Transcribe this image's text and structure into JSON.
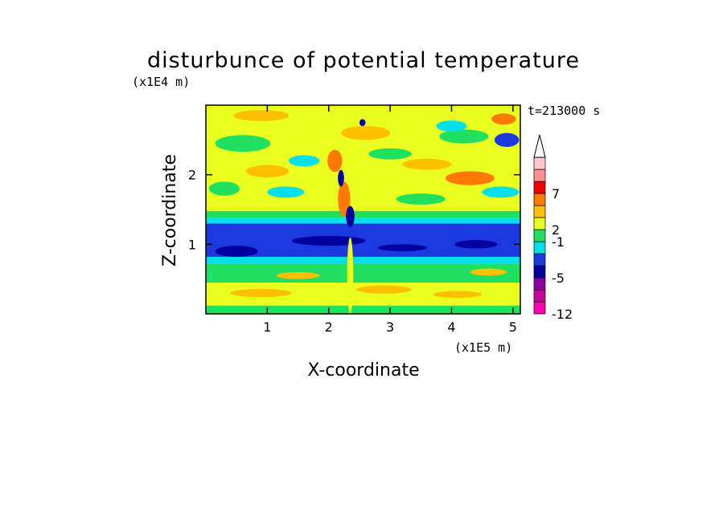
{
  "chart_data": {
    "type": "heatmap",
    "title": "disturbunce of potential temperature",
    "time_label": "t=213000 s",
    "xlabel": "X-coordinate",
    "ylabel": "Z-coordinate",
    "x_unit": "(x1E5 m)",
    "y_unit": "(x1E4 m)",
    "xlim": [
      0,
      5.12
    ],
    "ylim": [
      0,
      3.0
    ],
    "x_ticks": [
      {
        "value": 1,
        "label": "1"
      },
      {
        "value": 2,
        "label": "2"
      },
      {
        "value": 3,
        "label": "3"
      },
      {
        "value": 4,
        "label": "4"
      },
      {
        "value": 5,
        "label": "5"
      }
    ],
    "y_ticks": [
      {
        "value": 1,
        "label": "1"
      },
      {
        "value": 2,
        "label": "2"
      }
    ],
    "colorbar": {
      "levels": [
        {
          "color": "#ff00b0"
        },
        {
          "color": "#c8009a"
        },
        {
          "color": "#8a00a0"
        },
        {
          "color": "#0000a0"
        },
        {
          "color": "#1a3ae0"
        },
        {
          "color": "#00e0e8"
        },
        {
          "color": "#20e060"
        },
        {
          "color": "#e8ff20"
        },
        {
          "color": "#ffc000"
        },
        {
          "color": "#ff7a00"
        },
        {
          "color": "#f00000"
        },
        {
          "color": "#ff9090"
        },
        {
          "color": "#ffc8c8"
        }
      ],
      "tick_labels": [
        {
          "after_level": 0,
          "label": "-12"
        },
        {
          "after_level": 3,
          "label": "-5"
        },
        {
          "after_level": 6,
          "label": "-1"
        },
        {
          "after_level": 7,
          "label": "2"
        },
        {
          "after_level": 10,
          "label": "7"
        }
      ],
      "extend": "max"
    },
    "bands": [
      {
        "z0": 0.0,
        "z1": 0.12,
        "color": "#20e060"
      },
      {
        "z0": 0.12,
        "z1": 0.45,
        "color": "#e8ff20"
      },
      {
        "z0": 0.45,
        "z1": 0.72,
        "color": "#20e060"
      },
      {
        "z0": 0.72,
        "z1": 0.82,
        "color": "#00e0e8"
      },
      {
        "z0": 0.82,
        "z1": 1.3,
        "color": "#1a3ae0"
      },
      {
        "z0": 1.3,
        "z1": 1.38,
        "color": "#00e0e8"
      },
      {
        "z0": 1.38,
        "z1": 1.48,
        "color": "#20e060"
      },
      {
        "z0": 1.48,
        "z1": 3.0,
        "color": "#e8ff20"
      }
    ],
    "patches": [
      {
        "x": 0.9,
        "z": 0.3,
        "rx": 0.5,
        "rz": 0.06,
        "color": "#ffc000"
      },
      {
        "x": 2.9,
        "z": 0.35,
        "rx": 0.45,
        "rz": 0.06,
        "color": "#ffc000"
      },
      {
        "x": 4.1,
        "z": 0.28,
        "rx": 0.4,
        "rz": 0.05,
        "color": "#ffc000"
      },
      {
        "x": 1.5,
        "z": 0.55,
        "rx": 0.35,
        "rz": 0.05,
        "color": "#ffc000"
      },
      {
        "x": 4.6,
        "z": 0.6,
        "rx": 0.3,
        "rz": 0.05,
        "color": "#ffc000"
      },
      {
        "x": 0.5,
        "z": 0.9,
        "rx": 0.35,
        "rz": 0.08,
        "color": "#0000a0"
      },
      {
        "x": 2.0,
        "z": 1.05,
        "rx": 0.6,
        "rz": 0.07,
        "color": "#0000a0"
      },
      {
        "x": 3.2,
        "z": 0.95,
        "rx": 0.4,
        "rz": 0.05,
        "color": "#0000a0"
      },
      {
        "x": 4.4,
        "z": 1.0,
        "rx": 0.35,
        "rz": 0.06,
        "color": "#0000a0"
      },
      {
        "x": 0.3,
        "z": 1.8,
        "rx": 0.25,
        "rz": 0.1,
        "color": "#20e060"
      },
      {
        "x": 1.3,
        "z": 1.75,
        "rx": 0.3,
        "rz": 0.08,
        "color": "#00e0e8"
      },
      {
        "x": 3.5,
        "z": 1.65,
        "rx": 0.4,
        "rz": 0.08,
        "color": "#20e060"
      },
      {
        "x": 4.8,
        "z": 1.75,
        "rx": 0.3,
        "rz": 0.08,
        "color": "#00e0e8"
      },
      {
        "x": 0.6,
        "z": 2.45,
        "rx": 0.45,
        "rz": 0.12,
        "color": "#20e060"
      },
      {
        "x": 1.6,
        "z": 2.2,
        "rx": 0.25,
        "rz": 0.08,
        "color": "#00e0e8"
      },
      {
        "x": 3.0,
        "z": 2.3,
        "rx": 0.35,
        "rz": 0.08,
        "color": "#20e060"
      },
      {
        "x": 4.2,
        "z": 2.55,
        "rx": 0.4,
        "rz": 0.1,
        "color": "#20e060"
      },
      {
        "x": 1.0,
        "z": 2.05,
        "rx": 0.35,
        "rz": 0.09,
        "color": "#ffc000"
      },
      {
        "x": 2.6,
        "z": 2.6,
        "rx": 0.4,
        "rz": 0.1,
        "color": "#ffc000"
      },
      {
        "x": 0.9,
        "z": 2.85,
        "rx": 0.45,
        "rz": 0.08,
        "color": "#ffc000"
      },
      {
        "x": 3.6,
        "z": 2.15,
        "rx": 0.4,
        "rz": 0.08,
        "color": "#ffc000"
      },
      {
        "x": 4.3,
        "z": 1.95,
        "rx": 0.4,
        "rz": 0.1,
        "color": "#ff7a00"
      },
      {
        "x": 2.1,
        "z": 2.2,
        "rx": 0.12,
        "rz": 0.16,
        "color": "#ff7a00"
      },
      {
        "x": 2.25,
        "z": 1.65,
        "rx": 0.1,
        "rz": 0.25,
        "color": "#ff7a00"
      },
      {
        "x": 4.85,
        "z": 2.8,
        "rx": 0.2,
        "rz": 0.08,
        "color": "#ff7a00"
      },
      {
        "x": 4.0,
        "z": 2.7,
        "rx": 0.25,
        "rz": 0.08,
        "color": "#00e0e8"
      },
      {
        "x": 4.9,
        "z": 2.5,
        "rx": 0.2,
        "rz": 0.1,
        "color": "#1a3ae0"
      },
      {
        "x": 2.55,
        "z": 2.75,
        "rx": 0.05,
        "rz": 0.05,
        "color": "#0000a0"
      },
      {
        "x": 2.2,
        "z": 1.95,
        "rx": 0.05,
        "rz": 0.12,
        "color": "#0000a0"
      },
      {
        "x": 2.35,
        "z": 1.4,
        "rx": 0.07,
        "rz": 0.15,
        "color": "#0000a0"
      },
      {
        "x": 2.35,
        "z": 0.55,
        "rx": 0.05,
        "rz": 0.55,
        "color": "#e8ff20"
      }
    ]
  }
}
